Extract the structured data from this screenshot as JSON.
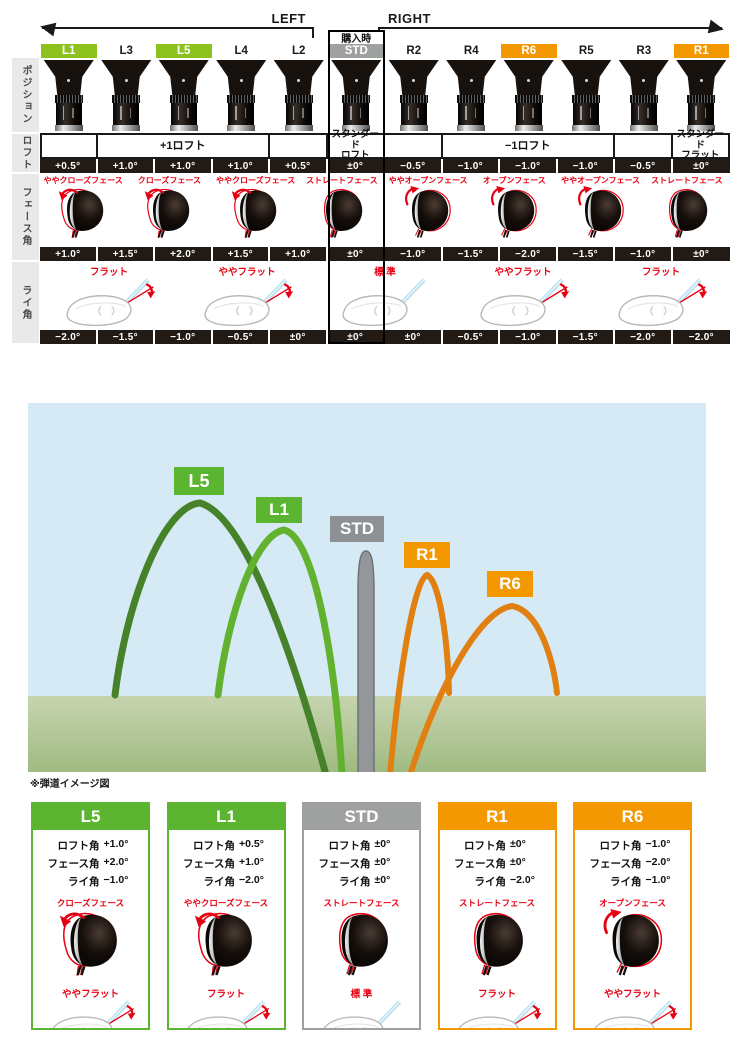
{
  "table": {
    "left_label": "LEFT",
    "right_label": "RIGHT",
    "purchase_label": "購入時",
    "row_headers": [
      "ポジション",
      "ロフト",
      "フェース角",
      "ライ角"
    ],
    "columns": [
      {
        "id": "L1",
        "badge": "green",
        "loft": "+0.5°",
        "face": "+1.0°",
        "lie": "−2.0°"
      },
      {
        "id": "L3",
        "badge": "none",
        "loft": "+1.0°",
        "face": "+1.5°",
        "lie": "−1.5°"
      },
      {
        "id": "L5",
        "badge": "green",
        "loft": "+1.0°",
        "face": "+2.0°",
        "lie": "−1.0°"
      },
      {
        "id": "L4",
        "badge": "none",
        "loft": "+1.0°",
        "face": "+1.5°",
        "lie": "−0.5°"
      },
      {
        "id": "L2",
        "badge": "none",
        "loft": "+0.5°",
        "face": "+1.0°",
        "lie": "±0°"
      },
      {
        "id": "STD",
        "badge": "gray",
        "loft": "±0°",
        "face": "±0°",
        "lie": "±0°"
      },
      {
        "id": "R2",
        "badge": "none",
        "loft": "−0.5°",
        "face": "−1.0°",
        "lie": "±0°"
      },
      {
        "id": "R4",
        "badge": "none",
        "loft": "−1.0°",
        "face": "−1.5°",
        "lie": "−0.5°"
      },
      {
        "id": "R6",
        "badge": "orange",
        "loft": "−1.0°",
        "face": "−2.0°",
        "lie": "−1.0°"
      },
      {
        "id": "R5",
        "badge": "none",
        "loft": "−1.0°",
        "face": "−1.5°",
        "lie": "−1.5°"
      },
      {
        "id": "R3",
        "badge": "none",
        "loft": "−0.5°",
        "face": "−1.0°",
        "lie": "−2.0°"
      },
      {
        "id": "R1",
        "badge": "orange",
        "loft": "±0°",
        "face": "±0°",
        "lie": "−2.0°"
      }
    ],
    "loft_groups": [
      {
        "label": "",
        "span": 1
      },
      {
        "label": "+1ロフト",
        "span": 3
      },
      {
        "label": "",
        "span": 1
      },
      {
        "label": "スタンダード\nロフト",
        "span": 1
      },
      {
        "label": "",
        "span": 1
      },
      {
        "label": "−1ロフト",
        "span": 3
      },
      {
        "label": "",
        "span": 1
      },
      {
        "label": "スタンダード\nフラット",
        "span": 1
      }
    ],
    "face_items": [
      {
        "label": "ややクローズフェース",
        "type": "closed"
      },
      {
        "label": "クローズフェース",
        "type": "closed"
      },
      {
        "label": "ややクローズフェース",
        "type": "closed"
      },
      {
        "label": "ストレートフェース",
        "type": "straight"
      },
      {
        "label": "ややオープンフェース",
        "type": "open"
      },
      {
        "label": "オープンフェース",
        "type": "open"
      },
      {
        "label": "ややオープンフェース",
        "type": "open"
      },
      {
        "label": "ストレートフェース",
        "type": "straight"
      }
    ],
    "lie_items": [
      {
        "label": "フラット",
        "type": "flat"
      },
      {
        "label": "ややフラット",
        "type": "flat"
      },
      {
        "label": "標 準",
        "type": "standard"
      },
      {
        "label": "ややフラット",
        "type": "flat"
      },
      {
        "label": "フラット",
        "type": "flat"
      }
    ]
  },
  "trajectory": {
    "caption": "※弾道イメージ図",
    "sky_color": "#d5eaf5",
    "labels": [
      {
        "id": "L5",
        "color": "#5cb531"
      },
      {
        "id": "L1",
        "color": "#5cb531"
      },
      {
        "id": "STD",
        "color": "#8e9193"
      },
      {
        "id": "R1",
        "color": "#f39800"
      },
      {
        "id": "R6",
        "color": "#f39800"
      }
    ],
    "curves": [
      {
        "id": "L5",
        "color": "#46822a"
      },
      {
        "id": "L1",
        "color": "#63b22f"
      },
      {
        "id": "STD",
        "color": "#94979a"
      },
      {
        "id": "R1",
        "color": "#e08012"
      },
      {
        "id": "R6",
        "color": "#e08012"
      }
    ]
  },
  "cards": [
    {
      "id": "L5",
      "theme": "green",
      "specs": [
        {
          "k": "ロフト角",
          "v": "+1.0°"
        },
        {
          "k": "フェース角",
          "v": "+2.0°"
        },
        {
          "k": "ライ角",
          "v": "−1.0°"
        }
      ],
      "face_label": "クローズフェース",
      "face_type": "closed",
      "lie_label": "ややフラット",
      "lie_type": "flat"
    },
    {
      "id": "L1",
      "theme": "green",
      "specs": [
        {
          "k": "ロフト角",
          "v": "+0.5°"
        },
        {
          "k": "フェース角",
          "v": "+1.0°"
        },
        {
          "k": "ライ角",
          "v": "−2.0°"
        }
      ],
      "face_label": "ややクローズフェース",
      "face_type": "closed",
      "lie_label": "フラット",
      "lie_type": "flat"
    },
    {
      "id": "STD",
      "theme": "gray",
      "specs": [
        {
          "k": "ロフト角",
          "v": "±0°"
        },
        {
          "k": "フェース角",
          "v": "±0°"
        },
        {
          "k": "ライ角",
          "v": "±0°"
        }
      ],
      "face_label": "ストレートフェース",
      "face_type": "straight",
      "lie_label": "標 準",
      "lie_type": "standard"
    },
    {
      "id": "R1",
      "theme": "orange",
      "specs": [
        {
          "k": "ロフト角",
          "v": "±0°"
        },
        {
          "k": "フェース角",
          "v": "±0°"
        },
        {
          "k": "ライ角",
          "v": "−2.0°"
        }
      ],
      "face_label": "ストレートフェース",
      "face_type": "straight",
      "lie_label": "フラット",
      "lie_type": "flat"
    },
    {
      "id": "R6",
      "theme": "orange",
      "specs": [
        {
          "k": "ロフト角",
          "v": "−1.0°"
        },
        {
          "k": "フェース角",
          "v": "−2.0°"
        },
        {
          "k": "ライ角",
          "v": "−1.0°"
        }
      ],
      "face_label": "オープンフェース",
      "face_type": "open",
      "lie_label": "ややフラット",
      "lie_type": "flat"
    }
  ],
  "colors": {
    "green": "#8dc21e",
    "orange": "#f39800",
    "gray": "#9fa0a0",
    "red": "#e60012",
    "black_row": "#221b15"
  }
}
